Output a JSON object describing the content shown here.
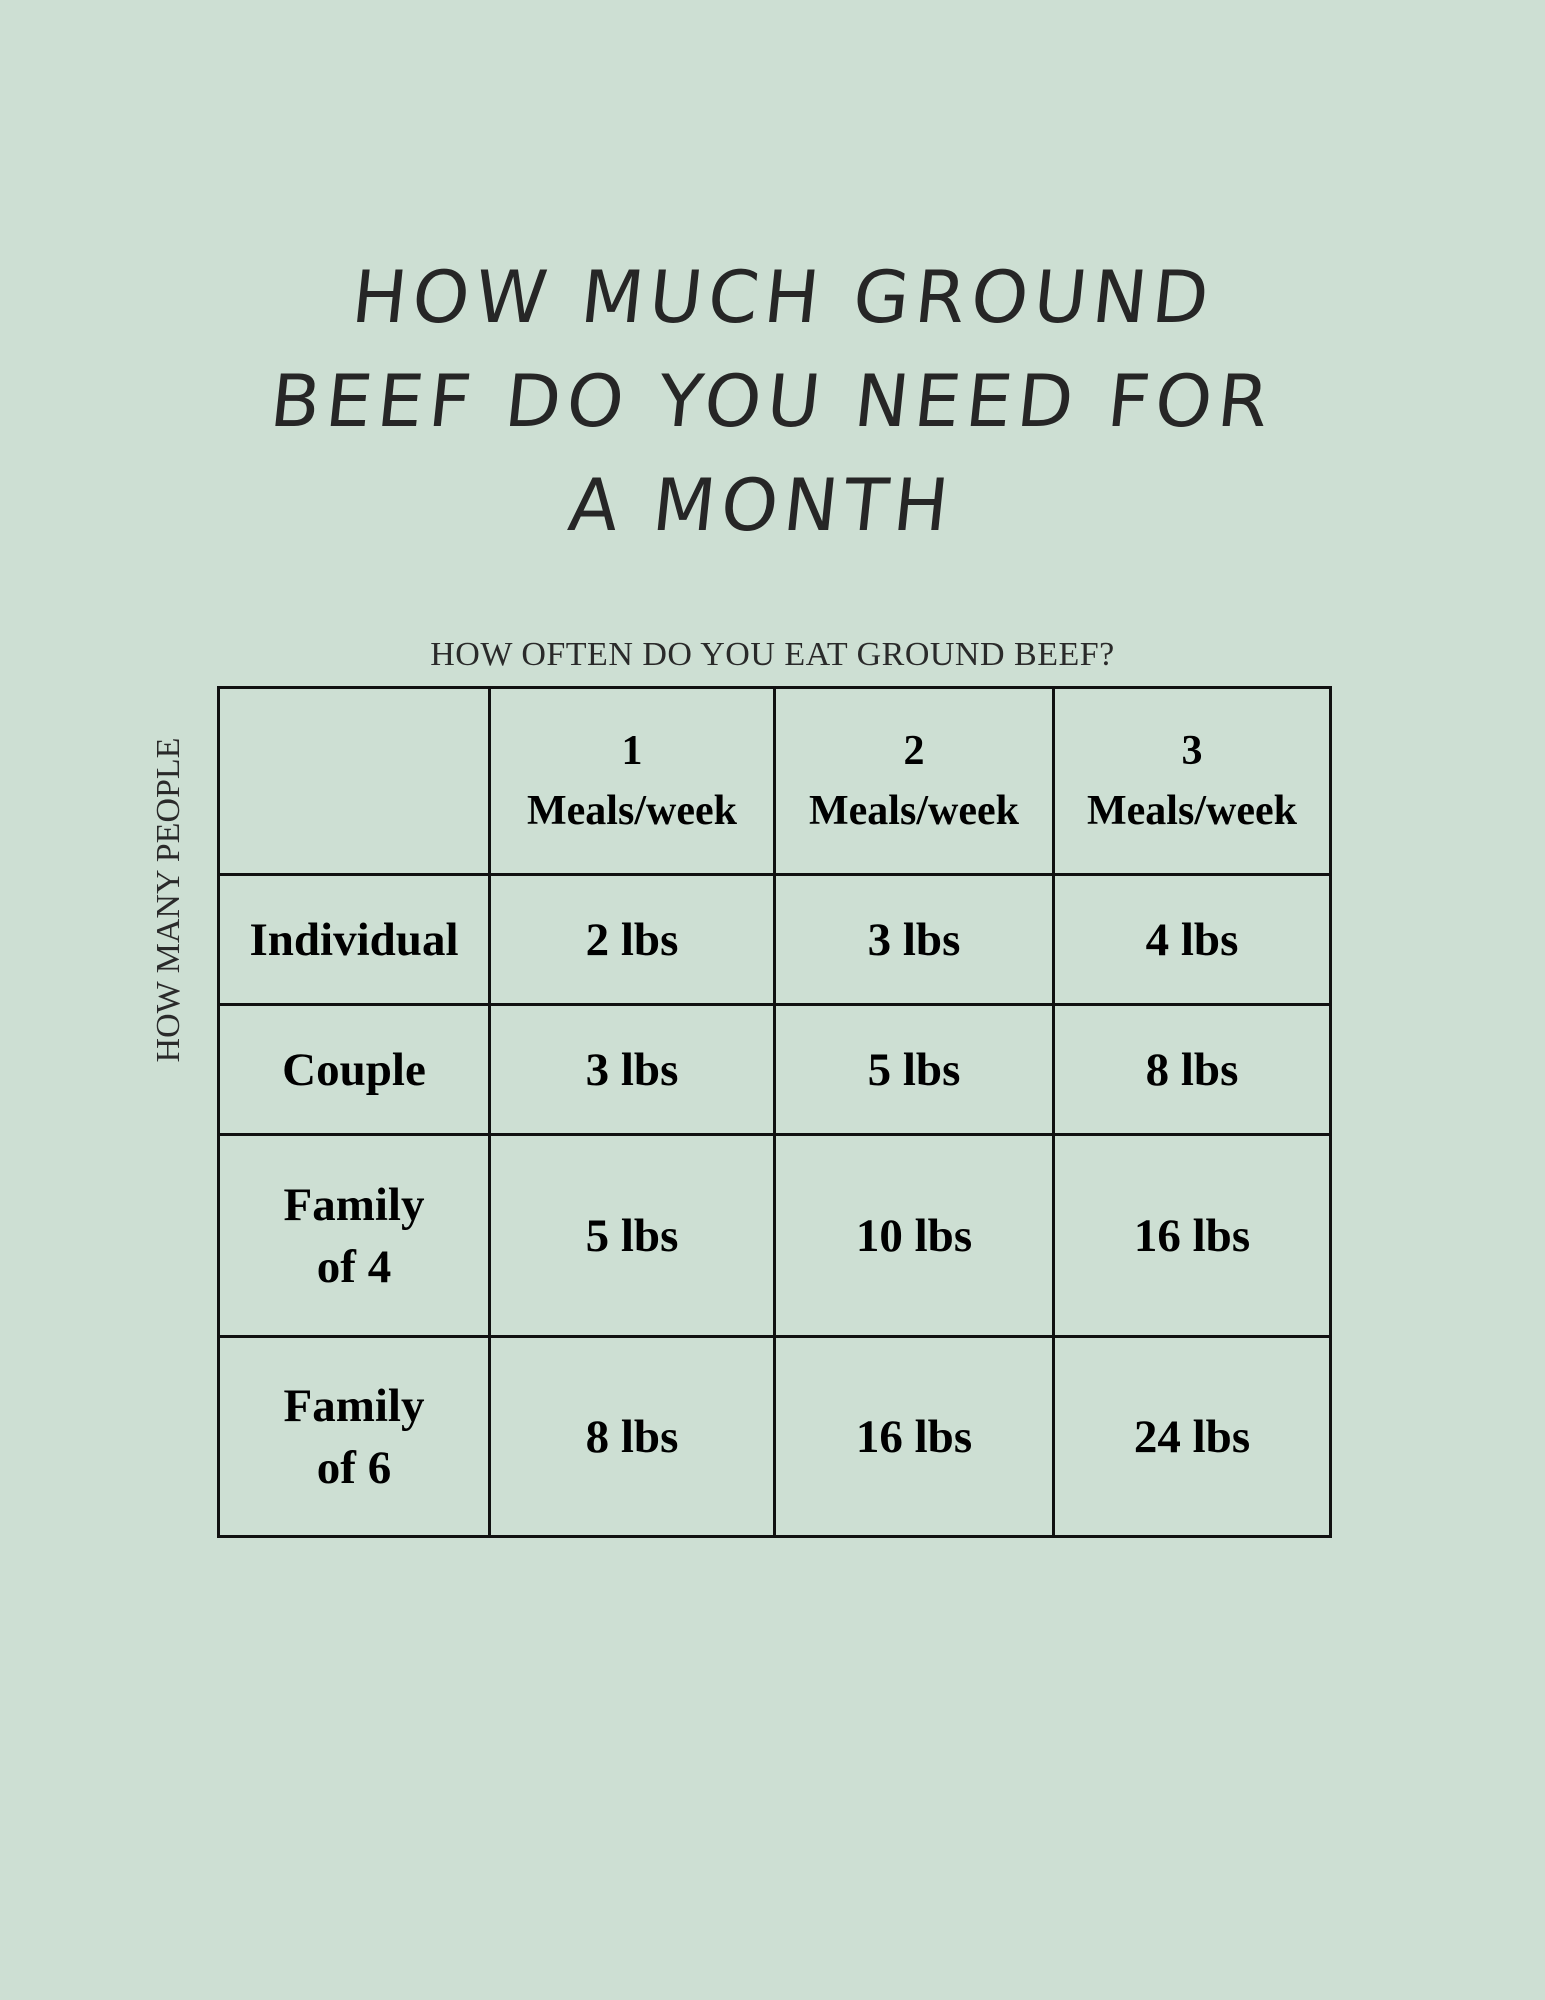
{
  "title": [
    "HOW MUCH GROUND",
    "BEEF DO YOU NEED FOR",
    "A MONTH"
  ],
  "column_axis_label": "HOW OFTEN DO YOU EAT GROUND BEEF?",
  "row_axis_label": "HOW MANY PEOPLE",
  "table": {
    "headers": [
      {
        "count": "1",
        "unit": "Meals/week"
      },
      {
        "count": "2",
        "unit": "Meals/week"
      },
      {
        "count": "3",
        "unit": "Meals/week"
      }
    ],
    "rows": [
      {
        "label": [
          "Individual"
        ],
        "values": [
          "2 lbs",
          "3 lbs",
          "4 lbs"
        ]
      },
      {
        "label": [
          "Couple"
        ],
        "values": [
          "3 lbs",
          "5 lbs",
          "8 lbs"
        ]
      },
      {
        "label": [
          "Family",
          "of 4"
        ],
        "values": [
          "5 lbs",
          "10 lbs",
          "16 lbs"
        ]
      },
      {
        "label": [
          "Family",
          "of 6"
        ],
        "values": [
          "8 lbs",
          "16 lbs",
          "24 lbs"
        ]
      }
    ]
  }
}
